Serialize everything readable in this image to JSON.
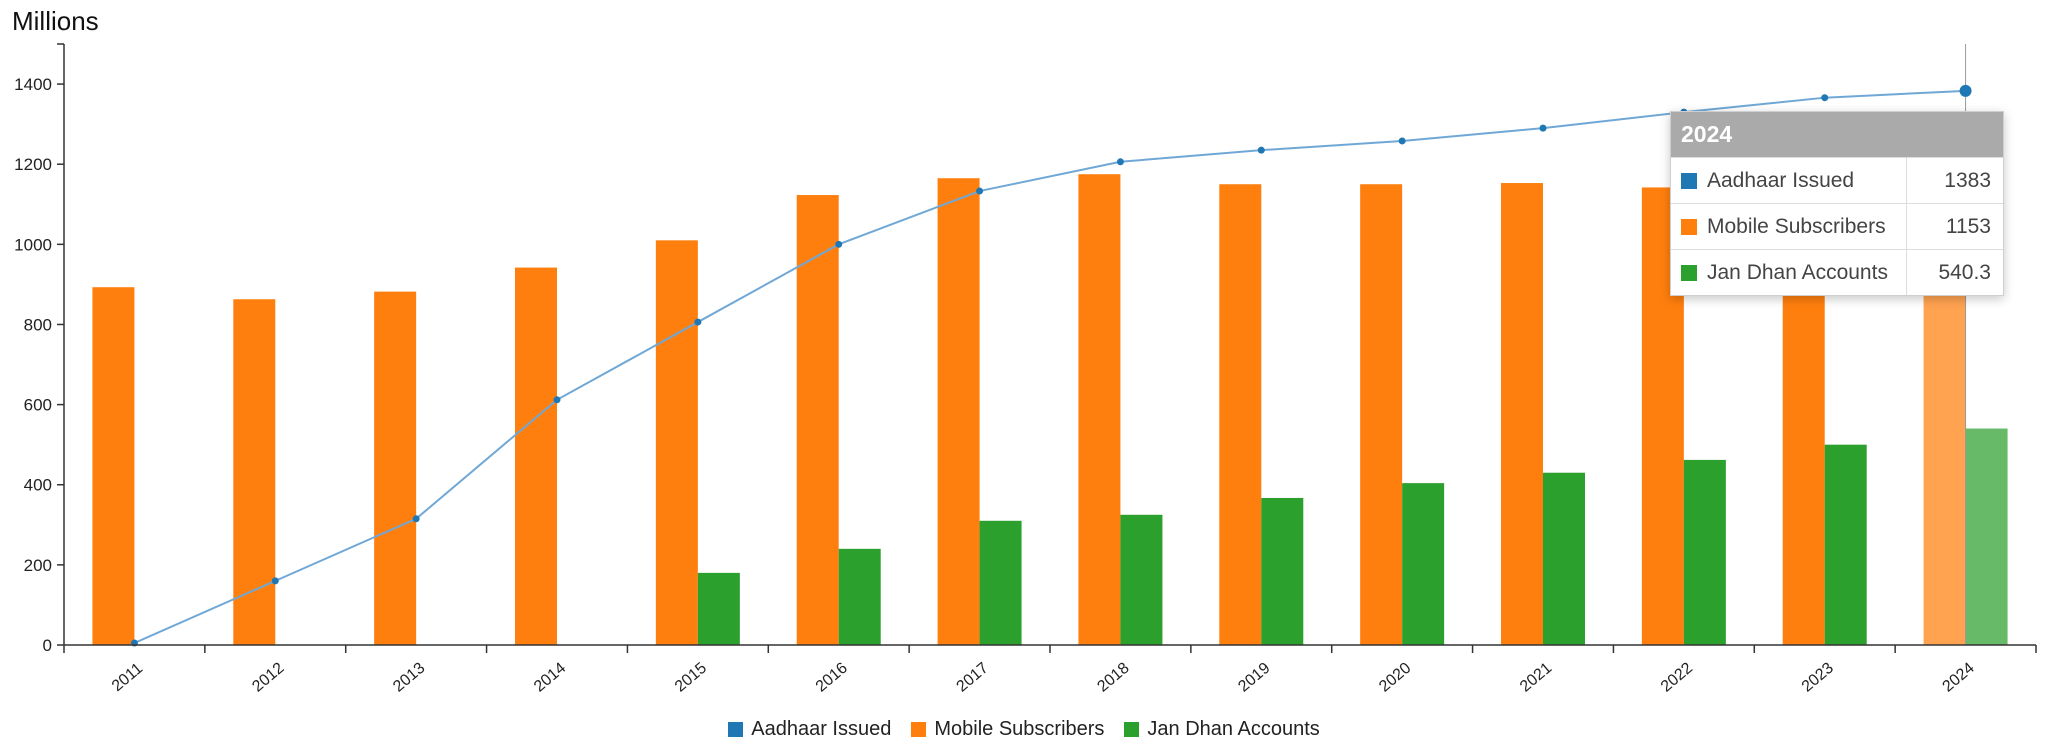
{
  "chart_data": {
    "type": "bar",
    "ylabel": "Millions",
    "ylim": [
      0,
      1500
    ],
    "yticks": [
      "0",
      "200",
      "400",
      "600",
      "800",
      "1000",
      "1200",
      "1400"
    ],
    "categories": [
      "2011",
      "2012",
      "2013",
      "2014",
      "2015",
      "2016",
      "2017",
      "2018",
      "2019",
      "2020",
      "2021",
      "2022",
      "2023",
      "2024"
    ],
    "series": [
      {
        "name": "Aadhaar Issued",
        "render": "line",
        "color": "#1f77b4",
        "values": [
          5,
          160,
          315,
          612,
          806,
          1000,
          1133,
          1206,
          1235,
          1258,
          1290,
          1330,
          1366,
          1383
        ]
      },
      {
        "name": "Mobile Subscribers",
        "render": "bar",
        "color": "#ff7f0e",
        "values": [
          893,
          863,
          882,
          942,
          1010,
          1123,
          1165,
          1175,
          1150,
          1150,
          1153,
          1142,
          1165,
          1153
        ]
      },
      {
        "name": "Jan Dhan Accounts",
        "render": "bar",
        "color": "#2ca02c",
        "values": [
          null,
          null,
          null,
          null,
          180,
          240,
          310,
          325,
          367,
          404,
          430,
          462,
          500,
          540.3
        ]
      }
    ],
    "legend": "bottom-center",
    "grid": false,
    "highlight_index": 13
  },
  "tooltip": {
    "title": "2024",
    "rows": [
      {
        "label": "Aadhaar Issued",
        "value": "1383",
        "color": "#1f77b4"
      },
      {
        "label": "Mobile Subscribers",
        "value": "1153",
        "color": "#ff7f0e"
      },
      {
        "label": "Jan Dhan Accounts",
        "value": "540.3",
        "color": "#2ca02c"
      }
    ]
  }
}
